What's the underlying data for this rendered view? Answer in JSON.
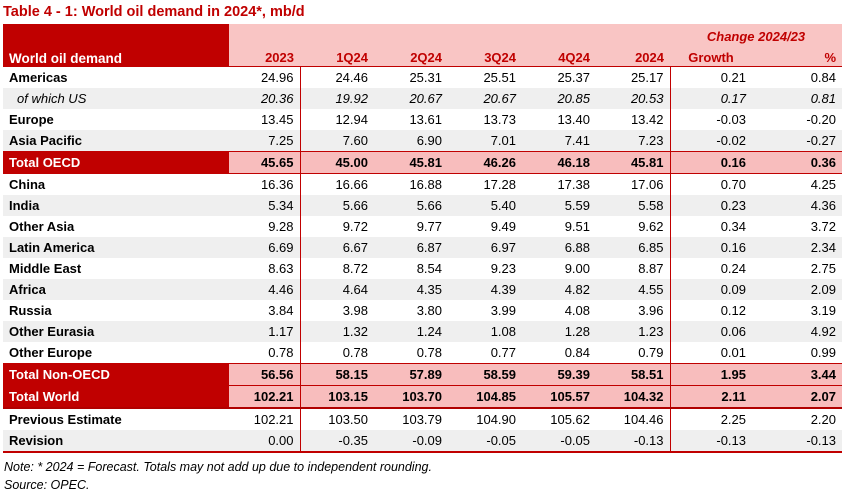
{
  "title": "Table 4 - 1: World oil demand in 2024*, mb/d",
  "table": {
    "corner_label": "World oil demand",
    "change_header": "Change 2024/23",
    "columns": [
      "2023",
      "1Q24",
      "2Q24",
      "3Q24",
      "4Q24",
      "2024"
    ],
    "change_columns": [
      "Growth",
      "%"
    ],
    "accent_color": "#c00000",
    "header_pink": "#f9c5c4",
    "total_row_pink": "#f8bdbd",
    "stripe_gray": "#efefef",
    "rows": [
      {
        "label": "Americas",
        "style": "plain",
        "shade": false,
        "values": [
          "24.96",
          "24.46",
          "25.31",
          "25.51",
          "25.37",
          "25.17",
          "0.21",
          "0.84"
        ]
      },
      {
        "label": "of which US",
        "style": "italic",
        "shade": true,
        "values": [
          "20.36",
          "19.92",
          "20.67",
          "20.67",
          "20.85",
          "20.53",
          "0.17",
          "0.81"
        ]
      },
      {
        "label": "Europe",
        "style": "plain",
        "shade": false,
        "values": [
          "13.45",
          "12.94",
          "13.61",
          "13.73",
          "13.40",
          "13.42",
          "-0.03",
          "-0.20"
        ]
      },
      {
        "label": "Asia Pacific",
        "style": "plain",
        "shade": true,
        "values": [
          "7.25",
          "7.60",
          "6.90",
          "7.01",
          "7.41",
          "7.23",
          "-0.02",
          "-0.27"
        ]
      },
      {
        "label": "Total OECD",
        "style": "total",
        "shade": false,
        "values": [
          "45.65",
          "45.00",
          "45.81",
          "46.26",
          "46.18",
          "45.81",
          "0.16",
          "0.36"
        ]
      },
      {
        "label": "China",
        "style": "plain",
        "shade": false,
        "values": [
          "16.36",
          "16.66",
          "16.88",
          "17.28",
          "17.38",
          "17.06",
          "0.70",
          "4.25"
        ]
      },
      {
        "label": "India",
        "style": "plain",
        "shade": true,
        "values": [
          "5.34",
          "5.66",
          "5.66",
          "5.40",
          "5.59",
          "5.58",
          "0.23",
          "4.36"
        ]
      },
      {
        "label": "Other Asia",
        "style": "plain",
        "shade": false,
        "values": [
          "9.28",
          "9.72",
          "9.77",
          "9.49",
          "9.51",
          "9.62",
          "0.34",
          "3.72"
        ]
      },
      {
        "label": "Latin America",
        "style": "plain",
        "shade": true,
        "values": [
          "6.69",
          "6.67",
          "6.87",
          "6.97",
          "6.88",
          "6.85",
          "0.16",
          "2.34"
        ]
      },
      {
        "label": "Middle East",
        "style": "plain",
        "shade": false,
        "values": [
          "8.63",
          "8.72",
          "8.54",
          "9.23",
          "9.00",
          "8.87",
          "0.24",
          "2.75"
        ]
      },
      {
        "label": "Africa",
        "style": "plain",
        "shade": true,
        "values": [
          "4.46",
          "4.64",
          "4.35",
          "4.39",
          "4.82",
          "4.55",
          "0.09",
          "2.09"
        ]
      },
      {
        "label": "Russia",
        "style": "plain",
        "shade": false,
        "values": [
          "3.84",
          "3.98",
          "3.80",
          "3.99",
          "4.08",
          "3.96",
          "0.12",
          "3.19"
        ]
      },
      {
        "label": "Other Eurasia",
        "style": "plain",
        "shade": true,
        "values": [
          "1.17",
          "1.32",
          "1.24",
          "1.08",
          "1.28",
          "1.23",
          "0.06",
          "4.92"
        ]
      },
      {
        "label": "Other Europe",
        "style": "plain",
        "shade": false,
        "values": [
          "0.78",
          "0.78",
          "0.78",
          "0.77",
          "0.84",
          "0.79",
          "0.01",
          "0.99"
        ]
      },
      {
        "label": "Total Non-OECD",
        "style": "total",
        "shade": false,
        "values": [
          "56.56",
          "58.15",
          "57.89",
          "58.59",
          "59.39",
          "58.51",
          "1.95",
          "3.44"
        ]
      },
      {
        "label": "Total World",
        "style": "world",
        "shade": false,
        "values": [
          "102.21",
          "103.15",
          "103.70",
          "104.85",
          "105.57",
          "104.32",
          "2.11",
          "2.07"
        ]
      },
      {
        "label": "Previous Estimate",
        "style": "plain",
        "shade": false,
        "values": [
          "102.21",
          "103.50",
          "103.79",
          "104.90",
          "105.62",
          "104.46",
          "2.25",
          "2.20"
        ]
      },
      {
        "label": "Revision",
        "style": "plain",
        "shade": true,
        "values": [
          "0.00",
          "-0.35",
          "-0.09",
          "-0.05",
          "-0.05",
          "-0.13",
          "-0.13",
          "-0.13"
        ]
      }
    ]
  },
  "note": "Note: * 2024 = Forecast. Totals may not add up due to independent rounding.",
  "source": "Source: OPEC."
}
